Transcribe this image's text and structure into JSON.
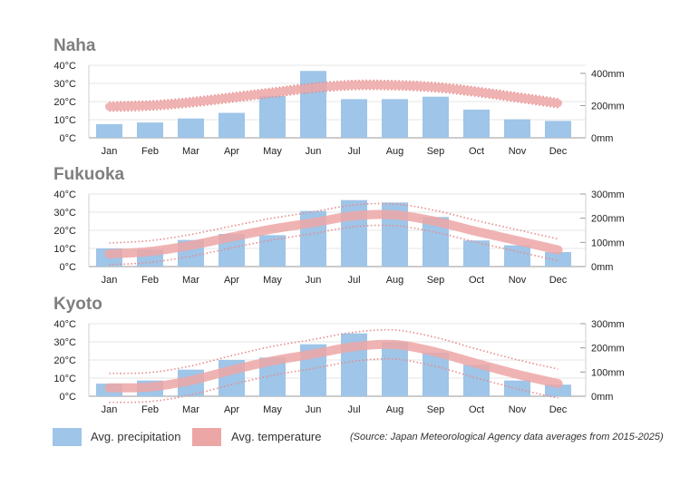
{
  "colors": {
    "bar": "#9fc5e8",
    "bar_edge": "#8bb6dd",
    "temp_band": "#eda6a6",
    "temp_dots": "#e88b8b",
    "title": "#7f7f7f",
    "axis": "#bbbbbb"
  },
  "chart_data": [
    {
      "type": "bar",
      "title": "Naha",
      "categories": [
        "Jan",
        "Feb",
        "Mar",
        "Apr",
        "May",
        "Jun",
        "Jul",
        "Aug",
        "Sep",
        "Oct",
        "Nov",
        "Dec"
      ],
      "left_axis": {
        "ticks": [
          "40°C",
          "30°C",
          "20°C",
          "10°C",
          "0°C"
        ],
        "ylim": [
          0,
          40
        ]
      },
      "right_axis": {
        "ticks": [
          "400mm",
          "200mm",
          "0mm"
        ],
        "tick_values": [
          400,
          200,
          0
        ],
        "ylim": [
          0,
          450
        ]
      },
      "series": [
        {
          "name": "Avg. precipitation",
          "axis": "right",
          "values": [
            85,
            95,
            120,
            155,
            260,
            415,
            240,
            240,
            255,
            175,
            115,
            105
          ]
        },
        {
          "name": "Avg. temperature",
          "axis": "left",
          "values": [
            17.2,
            17.8,
            19.6,
            22.2,
            24.9,
            27.6,
            29.1,
            29.0,
            27.9,
            25.4,
            22.3,
            19.1
          ],
          "spread": 2.5
        }
      ]
    },
    {
      "type": "bar",
      "title": "Fukuoka",
      "categories": [
        "Jan",
        "Feb",
        "Mar",
        "Apr",
        "May",
        "Jun",
        "Jul",
        "Aug",
        "Sep",
        "Oct",
        "Nov",
        "Dec"
      ],
      "left_axis": {
        "ticks": [
          "40°C",
          "30°C",
          "20°C",
          "10°C",
          "0°C"
        ],
        "ylim": [
          0,
          40
        ]
      },
      "right_axis": {
        "ticks": [
          "300mm",
          "200mm",
          "100mm",
          "0mm"
        ],
        "tick_values": [
          300,
          200,
          100,
          0
        ],
        "ylim": [
          0,
          300
        ]
      },
      "series": [
        {
          "name": "Avg. precipitation",
          "axis": "right",
          "values": [
            75,
            70,
            110,
            135,
            130,
            230,
            275,
            265,
            205,
            108,
            88,
            60
          ]
        },
        {
          "name": "Avg. temperature",
          "axis": "left",
          "values": [
            7.0,
            8.3,
            11.7,
            16.3,
            20.7,
            24.2,
            28.0,
            28.5,
            24.9,
            19.4,
            14.3,
            9.2
          ],
          "spread": 6
        }
      ]
    },
    {
      "type": "bar",
      "title": "Kyoto",
      "categories": [
        "Jan",
        "Feb",
        "Mar",
        "Apr",
        "May",
        "Jun",
        "Jul",
        "Aug",
        "Sep",
        "Oct",
        "Nov",
        "Dec"
      ],
      "left_axis": {
        "ticks": [
          "40°C",
          "30°C",
          "20°C",
          "10°C",
          "0°C"
        ],
        "ylim": [
          0,
          40
        ]
      },
      "right_axis": {
        "ticks": [
          "300mm",
          "200mm",
          "100mm",
          "0mm"
        ],
        "tick_values": [
          300,
          200,
          100,
          0
        ],
        "ylim": [
          0,
          300
        ]
      },
      "series": [
        {
          "name": "Avg. precipitation",
          "axis": "right",
          "values": [
            52,
            65,
            110,
            150,
            160,
            215,
            260,
            225,
            180,
            130,
            65,
            48
          ]
        },
        {
          "name": "Avg. temperature",
          "axis": "left",
          "values": [
            4.6,
            5.1,
            8.7,
            14.4,
            19.5,
            23.3,
            27.3,
            28.5,
            24.4,
            18.1,
            12.1,
            7.0
          ],
          "spread": 8
        }
      ]
    }
  ],
  "legend": {
    "precipitation_label": "Avg. precipitation",
    "temperature_label": "Avg. temperature"
  },
  "source": "(Source: Japan Meteorological Agency data averages from 2015-2025)"
}
